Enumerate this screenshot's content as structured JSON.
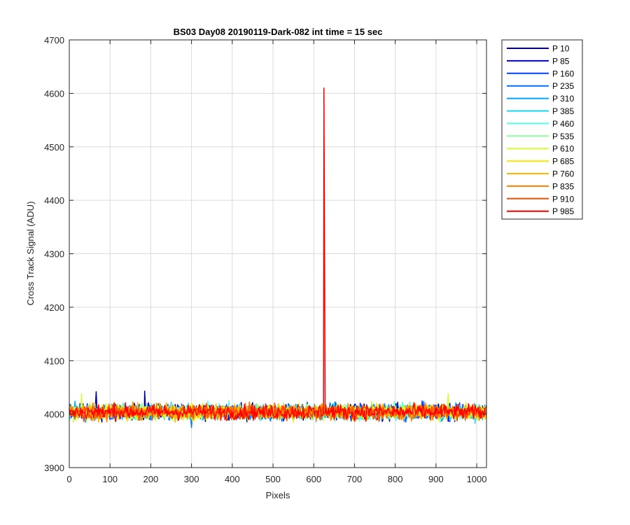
{
  "chart_data": {
    "type": "line",
    "title": "BS03 Day08 20190119-Dark-082 int time = 15 sec",
    "xlabel": "Pixels",
    "ylabel": "Cross Track Signal (ADU)",
    "xlim": [
      0,
      1024
    ],
    "ylim": [
      3900,
      4700
    ],
    "xticks": [
      0,
      100,
      200,
      300,
      400,
      500,
      600,
      700,
      800,
      900,
      1000
    ],
    "yticks": [
      3900,
      4000,
      4100,
      4200,
      4300,
      4400,
      4500,
      4600,
      4700
    ],
    "grid": true,
    "legend_position": "outside-top-right",
    "baseline": 4004,
    "noise_amplitude": 12,
    "series": [
      {
        "name": "P 10",
        "color": "#00008f",
        "spikes": [
          [
            66,
            4042
          ],
          [
            185,
            4043
          ]
        ]
      },
      {
        "name": "P 85",
        "color": "#0000cc",
        "spikes": []
      },
      {
        "name": "P 160",
        "color": "#0040ff",
        "spikes": []
      },
      {
        "name": "P 235",
        "color": "#0070ff",
        "spikes": [
          [
            300,
            3975
          ]
        ]
      },
      {
        "name": "P 310",
        "color": "#00a4ff",
        "spikes": []
      },
      {
        "name": "P 385",
        "color": "#12d8f0",
        "spikes": []
      },
      {
        "name": "P 460",
        "color": "#55ffe0",
        "spikes": []
      },
      {
        "name": "P 535",
        "color": "#8cffa0",
        "spikes": []
      },
      {
        "name": "P 610",
        "color": "#d2ff2d",
        "spikes": [
          [
            30,
            4038
          ],
          [
            930,
            4038
          ]
        ]
      },
      {
        "name": "P 685",
        "color": "#ffe500",
        "spikes": []
      },
      {
        "name": "P 760",
        "color": "#ffb400",
        "spikes": []
      },
      {
        "name": "P 835",
        "color": "#ff8000",
        "spikes": []
      },
      {
        "name": "P 910",
        "color": "#ff4b00",
        "spikes": []
      },
      {
        "name": "P 985",
        "color": "#ff0000",
        "spikes": [
          [
            625,
            4610
          ]
        ]
      }
    ]
  }
}
